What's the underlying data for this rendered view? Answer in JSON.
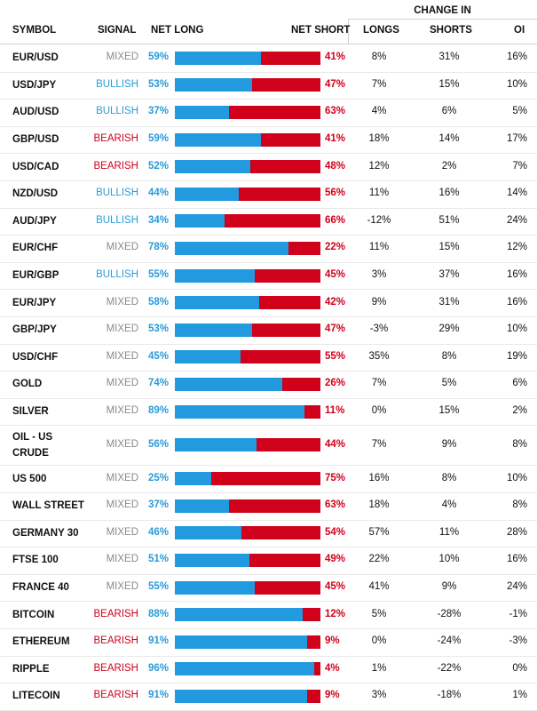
{
  "header": {
    "change_in": "CHANGE IN",
    "symbol": "SYMBOL",
    "signal": "SIGNAL",
    "net_long": "NET LONG",
    "net_short": "NET SHORT",
    "longs": "LONGS",
    "shorts": "SHORTS",
    "oi": "OI"
  },
  "colors": {
    "long": "#219ae0",
    "short": "#d0021b",
    "mixed": "#8a8a8a",
    "bullish": "#2a9ad8",
    "bearish": "#d0021b"
  },
  "rows": [
    {
      "symbol": "EUR/USD",
      "signal": "MIXED",
      "net_long": 59,
      "net_short": 41,
      "net_long_label": "59%",
      "net_short_label": "41%",
      "longs": "8%",
      "shorts": "31%",
      "oi": "16%"
    },
    {
      "symbol": "USD/JPY",
      "signal": "BULLISH",
      "net_long": 53,
      "net_short": 47,
      "net_long_label": "53%",
      "net_short_label": "47%",
      "longs": "7%",
      "shorts": "15%",
      "oi": "10%"
    },
    {
      "symbol": "AUD/USD",
      "signal": "BULLISH",
      "net_long": 37,
      "net_short": 63,
      "net_long_label": "37%",
      "net_short_label": "63%",
      "longs": "4%",
      "shorts": "6%",
      "oi": "5%"
    },
    {
      "symbol": "GBP/USD",
      "signal": "BEARISH",
      "net_long": 59,
      "net_short": 41,
      "net_long_label": "59%",
      "net_short_label": "41%",
      "longs": "18%",
      "shorts": "14%",
      "oi": "17%"
    },
    {
      "symbol": "USD/CAD",
      "signal": "BEARISH",
      "net_long": 52,
      "net_short": 48,
      "net_long_label": "52%",
      "net_short_label": "48%",
      "longs": "12%",
      "shorts": "2%",
      "oi": "7%"
    },
    {
      "symbol": "NZD/USD",
      "signal": "BULLISH",
      "net_long": 44,
      "net_short": 56,
      "net_long_label": "44%",
      "net_short_label": "56%",
      "longs": "11%",
      "shorts": "16%",
      "oi": "14%"
    },
    {
      "symbol": "AUD/JPY",
      "signal": "BULLISH",
      "net_long": 34,
      "net_short": 66,
      "net_long_label": "34%",
      "net_short_label": "66%",
      "longs": "-12%",
      "shorts": "51%",
      "oi": "24%"
    },
    {
      "symbol": "EUR/CHF",
      "signal": "MIXED",
      "net_long": 78,
      "net_short": 22,
      "net_long_label": "78%",
      "net_short_label": "22%",
      "longs": "11%",
      "shorts": "15%",
      "oi": "12%"
    },
    {
      "symbol": "EUR/GBP",
      "signal": "BULLISH",
      "net_long": 55,
      "net_short": 45,
      "net_long_label": "55%",
      "net_short_label": "45%",
      "longs": "3%",
      "shorts": "37%",
      "oi": "16%"
    },
    {
      "symbol": "EUR/JPY",
      "signal": "MIXED",
      "net_long": 58,
      "net_short": 42,
      "net_long_label": "58%",
      "net_short_label": "42%",
      "longs": "9%",
      "shorts": "31%",
      "oi": "16%"
    },
    {
      "symbol": "GBP/JPY",
      "signal": "MIXED",
      "net_long": 53,
      "net_short": 47,
      "net_long_label": "53%",
      "net_short_label": "47%",
      "longs": "-3%",
      "shorts": "29%",
      "oi": "10%"
    },
    {
      "symbol": "USD/CHF",
      "signal": "MIXED",
      "net_long": 45,
      "net_short": 55,
      "net_long_label": "45%",
      "net_short_label": "55%",
      "longs": "35%",
      "shorts": "8%",
      "oi": "19%"
    },
    {
      "symbol": "GOLD",
      "signal": "MIXED",
      "net_long": 74,
      "net_short": 26,
      "net_long_label": "74%",
      "net_short_label": "26%",
      "longs": "7%",
      "shorts": "5%",
      "oi": "6%"
    },
    {
      "symbol": "SILVER",
      "signal": "MIXED",
      "net_long": 89,
      "net_short": 11,
      "net_long_label": "89%",
      "net_short_label": "11%",
      "longs": "0%",
      "shorts": "15%",
      "oi": "2%"
    },
    {
      "symbol": "OIL - US CRUDE",
      "signal": "MIXED",
      "net_long": 56,
      "net_short": 44,
      "net_long_label": "56%",
      "net_short_label": "44%",
      "longs": "7%",
      "shorts": "9%",
      "oi": "8%"
    },
    {
      "symbol": "US 500",
      "signal": "MIXED",
      "net_long": 25,
      "net_short": 75,
      "net_long_label": "25%",
      "net_short_label": "75%",
      "longs": "16%",
      "shorts": "8%",
      "oi": "10%"
    },
    {
      "symbol": "WALL STREET",
      "signal": "MIXED",
      "net_long": 37,
      "net_short": 63,
      "net_long_label": "37%",
      "net_short_label": "63%",
      "longs": "18%",
      "shorts": "4%",
      "oi": "8%"
    },
    {
      "symbol": "GERMANY 30",
      "signal": "MIXED",
      "net_long": 46,
      "net_short": 54,
      "net_long_label": "46%",
      "net_short_label": "54%",
      "longs": "57%",
      "shorts": "11%",
      "oi": "28%"
    },
    {
      "symbol": "FTSE 100",
      "signal": "MIXED",
      "net_long": 51,
      "net_short": 49,
      "net_long_label": "51%",
      "net_short_label": "49%",
      "longs": "22%",
      "shorts": "10%",
      "oi": "16%"
    },
    {
      "symbol": "FRANCE 40",
      "signal": "MIXED",
      "net_long": 55,
      "net_short": 45,
      "net_long_label": "55%",
      "net_short_label": "45%",
      "longs": "41%",
      "shorts": "9%",
      "oi": "24%"
    },
    {
      "symbol": "BITCOIN",
      "signal": "BEARISH",
      "net_long": 88,
      "net_short": 12,
      "net_long_label": "88%",
      "net_short_label": "12%",
      "longs": "5%",
      "shorts": "-28%",
      "oi": "-1%"
    },
    {
      "symbol": "ETHEREUM",
      "signal": "BEARISH",
      "net_long": 91,
      "net_short": 9,
      "net_long_label": "91%",
      "net_short_label": "9%",
      "longs": "0%",
      "shorts": "-24%",
      "oi": "-3%"
    },
    {
      "symbol": "RIPPLE",
      "signal": "BEARISH",
      "net_long": 96,
      "net_short": 4,
      "net_long_label": "96%",
      "net_short_label": "4%",
      "longs": "1%",
      "shorts": "-22%",
      "oi": "0%"
    },
    {
      "symbol": "LITECOIN",
      "signal": "BEARISH",
      "net_long": 91,
      "net_short": 9,
      "net_long_label": "91%",
      "net_short_label": "9%",
      "longs": "3%",
      "shorts": "-18%",
      "oi": "1%"
    }
  ]
}
